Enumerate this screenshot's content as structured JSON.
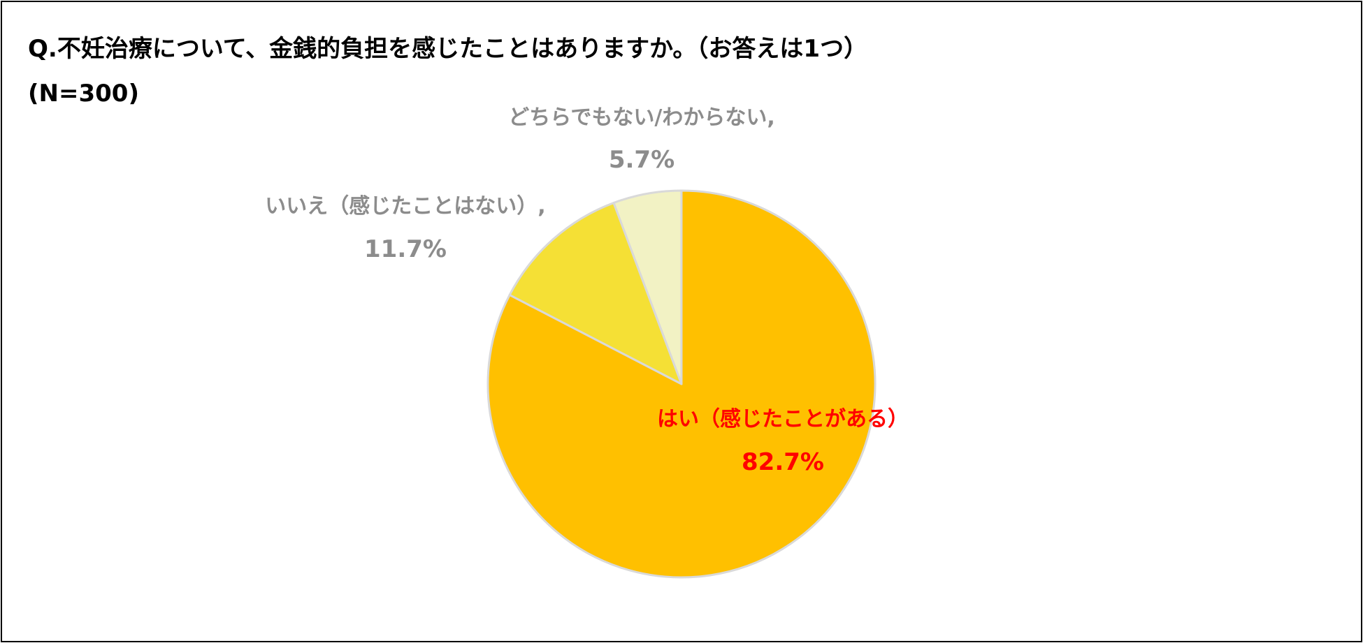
{
  "chart_data": {
    "type": "pie",
    "title": "Q.不妊治療について、金銭的負担を感じたことはありますか。（お答えは1つ）",
    "subtitle": "(N=300)",
    "slices": [
      {
        "label": "はい（感じたことがある）",
        "value_label": "82.7%",
        "value": 82.7,
        "color": "#FFC000",
        "label_color": "#FF0000"
      },
      {
        "label": "いいえ（感じたことはない）,",
        "value_label": "11.7%",
        "value": 11.7,
        "color": "#F5E035",
        "label_color": "#8C8C8C"
      },
      {
        "label": "どちらでもない/わからない,",
        "value_label": "5.7%",
        "value": 5.7,
        "color": "#F2F2C4",
        "label_color": "#8C8C8C"
      }
    ],
    "slice_border_color": "#D9D9D9"
  }
}
